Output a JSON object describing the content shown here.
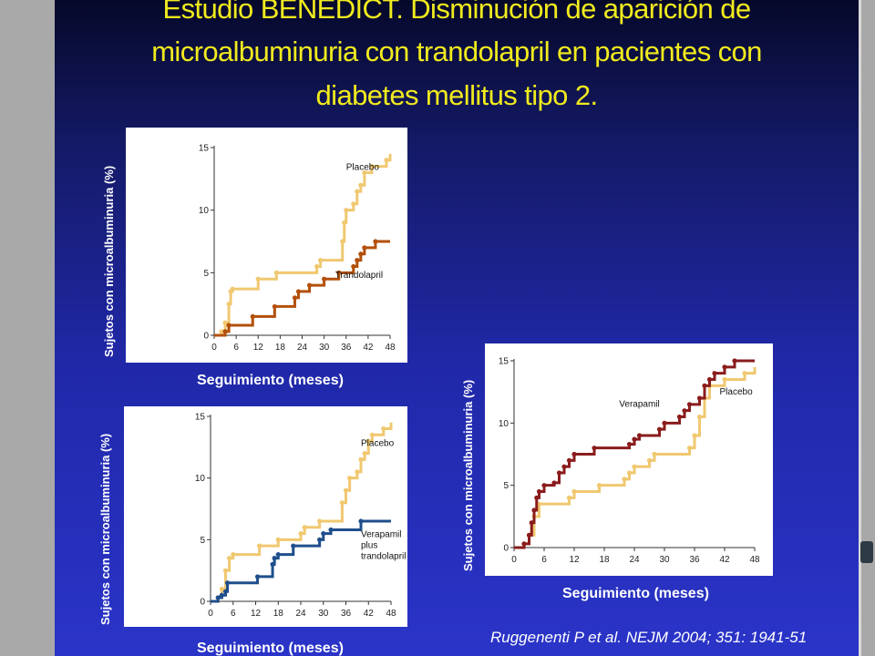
{
  "slide": {
    "title_lines": [
      "Estudio BENEDICT. Disminución de aparición de",
      "microalbuminuria con trandolapril en pacientes con",
      "diabetes mellitus tipo 2."
    ],
    "citation": "Ruggenenti P et al. NEJM 2004; 351: 1941-51"
  },
  "colors": {
    "placebo": "#f0c870",
    "trandolapril": "#b3500a",
    "combo": "#1f4e8c",
    "verapamil": "#8a1c1c"
  },
  "chart_data": [
    {
      "type": "line",
      "xlabel": "Seguimiento (meses)",
      "ylabel": "Sujetos con microalbuminuria (%)",
      "xlim": [
        0,
        48
      ],
      "ylim": [
        0,
        15
      ],
      "xticks": [
        0,
        6,
        12,
        18,
        24,
        30,
        36,
        42,
        48
      ],
      "yticks": [
        0,
        5,
        10,
        15
      ],
      "series": [
        {
          "name": "Placebo",
          "color_key": "placebo",
          "points": [
            [
              0,
              0
            ],
            [
              2,
              0.3
            ],
            [
              3,
              1
            ],
            [
              4,
              2.5
            ],
            [
              4.5,
              3.5
            ],
            [
              5,
              3.7
            ],
            [
              11,
              3.7
            ],
            [
              12,
              4.5
            ],
            [
              16,
              4.5
            ],
            [
              17,
              5
            ],
            [
              27,
              5
            ],
            [
              28,
              5.5
            ],
            [
              29,
              6
            ],
            [
              34,
              6
            ],
            [
              35,
              7.5
            ],
            [
              35.5,
              9
            ],
            [
              36,
              10
            ],
            [
              38,
              10.5
            ],
            [
              39,
              11.5
            ],
            [
              40,
              12
            ],
            [
              41,
              13
            ],
            [
              42,
              13
            ],
            [
              43,
              13.5
            ],
            [
              47,
              14
            ],
            [
              48,
              14.5
            ]
          ]
        },
        {
          "name": "Trandolapril",
          "color_key": "trandolapril",
          "points": [
            [
              0,
              0
            ],
            [
              3,
              0.3
            ],
            [
              4,
              0.8
            ],
            [
              10,
              0.8
            ],
            [
              10.5,
              1.5
            ],
            [
              16,
              1.5
            ],
            [
              16.5,
              2.3
            ],
            [
              21,
              2.3
            ],
            [
              22,
              3
            ],
            [
              23,
              3.5
            ],
            [
              25,
              3.5
            ],
            [
              26,
              4
            ],
            [
              29,
              4
            ],
            [
              30,
              4.5
            ],
            [
              32,
              4.5
            ],
            [
              34,
              5
            ],
            [
              37,
              5
            ],
            [
              38,
              5.5
            ],
            [
              39,
              6
            ],
            [
              40,
              6.5
            ],
            [
              41,
              7
            ],
            [
              42,
              7
            ],
            [
              44,
              7.5
            ],
            [
              48,
              7.5
            ]
          ]
        }
      ]
    },
    {
      "type": "line",
      "xlabel": "Seguimiento (meses)",
      "ylabel": "Sujetos con microalbuminuria (%)",
      "xlim": [
        0,
        48
      ],
      "ylim": [
        0,
        15
      ],
      "xticks": [
        0,
        6,
        12,
        18,
        24,
        30,
        36,
        42,
        48
      ],
      "yticks": [
        0,
        5,
        10,
        15
      ],
      "series": [
        {
          "name": "Placebo",
          "color_key": "placebo",
          "points": [
            [
              0,
              0
            ],
            [
              2,
              0.3
            ],
            [
              3,
              1
            ],
            [
              4,
              2.5
            ],
            [
              5,
              3.5
            ],
            [
              6,
              3.8
            ],
            [
              12,
              3.8
            ],
            [
              13,
              4.5
            ],
            [
              17,
              4.5
            ],
            [
              18,
              5
            ],
            [
              23,
              5
            ],
            [
              24,
              5.5
            ],
            [
              25,
              6
            ],
            [
              29,
              6.5
            ],
            [
              34,
              6.5
            ],
            [
              35,
              8
            ],
            [
              36,
              9
            ],
            [
              37,
              10
            ],
            [
              39,
              10.5
            ],
            [
              40,
              11.5
            ],
            [
              41,
              12
            ],
            [
              42,
              13
            ],
            [
              43,
              13.5
            ],
            [
              46,
              14
            ],
            [
              48,
              14.5
            ]
          ]
        },
        {
          "name": "Verapamil plus trandolapril",
          "label_lines": [
            "Verapamil",
            "plus",
            "trandolapril"
          ],
          "color_key": "combo",
          "points": [
            [
              0,
              0
            ],
            [
              2,
              0.3
            ],
            [
              3,
              0.5
            ],
            [
              4,
              0.8
            ],
            [
              4.5,
              1.5
            ],
            [
              12,
              1.5
            ],
            [
              12.5,
              2
            ],
            [
              16,
              2
            ],
            [
              16.5,
              3
            ],
            [
              17,
              3.5
            ],
            [
              18,
              3.8
            ],
            [
              21,
              3.8
            ],
            [
              22,
              4.5
            ],
            [
              28,
              4.5
            ],
            [
              29,
              5
            ],
            [
              30,
              5.5
            ],
            [
              32,
              5.8
            ],
            [
              39,
              5.8
            ],
            [
              40,
              6.5
            ],
            [
              48,
              6.5
            ]
          ]
        }
      ]
    },
    {
      "type": "line",
      "xlabel": "Seguimiento (meses)",
      "ylabel": "Sujetos con microalbuminuria (%)",
      "xlim": [
        0,
        48
      ],
      "ylim": [
        0,
        15
      ],
      "xticks": [
        0,
        6,
        12,
        18,
        24,
        30,
        36,
        42,
        48
      ],
      "yticks": [
        0,
        5,
        10,
        15
      ],
      "series": [
        {
          "name": "Placebo",
          "color_key": "placebo",
          "points": [
            [
              0,
              0
            ],
            [
              2,
              0.3
            ],
            [
              3,
              1
            ],
            [
              4,
              2.5
            ],
            [
              5,
              3.5
            ],
            [
              10,
              3.5
            ],
            [
              11,
              4
            ],
            [
              12,
              4.5
            ],
            [
              16,
              4.5
            ],
            [
              17,
              5
            ],
            [
              21,
              5
            ],
            [
              22,
              5.5
            ],
            [
              23,
              6
            ],
            [
              24,
              6.5
            ],
            [
              26,
              6.5
            ],
            [
              27,
              7
            ],
            [
              28,
              7.5
            ],
            [
              34,
              7.5
            ],
            [
              35,
              8
            ],
            [
              36,
              9
            ],
            [
              37,
              10.5
            ],
            [
              38,
              12
            ],
            [
              39,
              13
            ],
            [
              41,
              13
            ],
            [
              42,
              13.5
            ],
            [
              46,
              14
            ],
            [
              48,
              14.5
            ]
          ]
        },
        {
          "name": "Verapamil",
          "color_key": "verapamil",
          "points": [
            [
              0,
              0
            ],
            [
              2,
              0.3
            ],
            [
              3,
              1
            ],
            [
              3.5,
              2
            ],
            [
              4,
              3
            ],
            [
              4.5,
              4
            ],
            [
              5,
              4.5
            ],
            [
              6,
              5
            ],
            [
              8,
              5.2
            ],
            [
              9,
              6
            ],
            [
              10,
              6.5
            ],
            [
              11,
              7
            ],
            [
              12,
              7.5
            ],
            [
              15,
              7.5
            ],
            [
              16,
              8
            ],
            [
              23,
              8.3
            ],
            [
              24,
              8.7
            ],
            [
              25,
              9
            ],
            [
              29,
              9.5
            ],
            [
              30,
              10
            ],
            [
              33,
              10.5
            ],
            [
              34,
              11
            ],
            [
              35,
              11.5
            ],
            [
              37,
              12
            ],
            [
              38,
              13
            ],
            [
              39,
              13.5
            ],
            [
              40,
              14
            ],
            [
              42,
              14.5
            ],
            [
              44,
              15
            ],
            [
              48,
              15
            ]
          ]
        }
      ]
    }
  ]
}
